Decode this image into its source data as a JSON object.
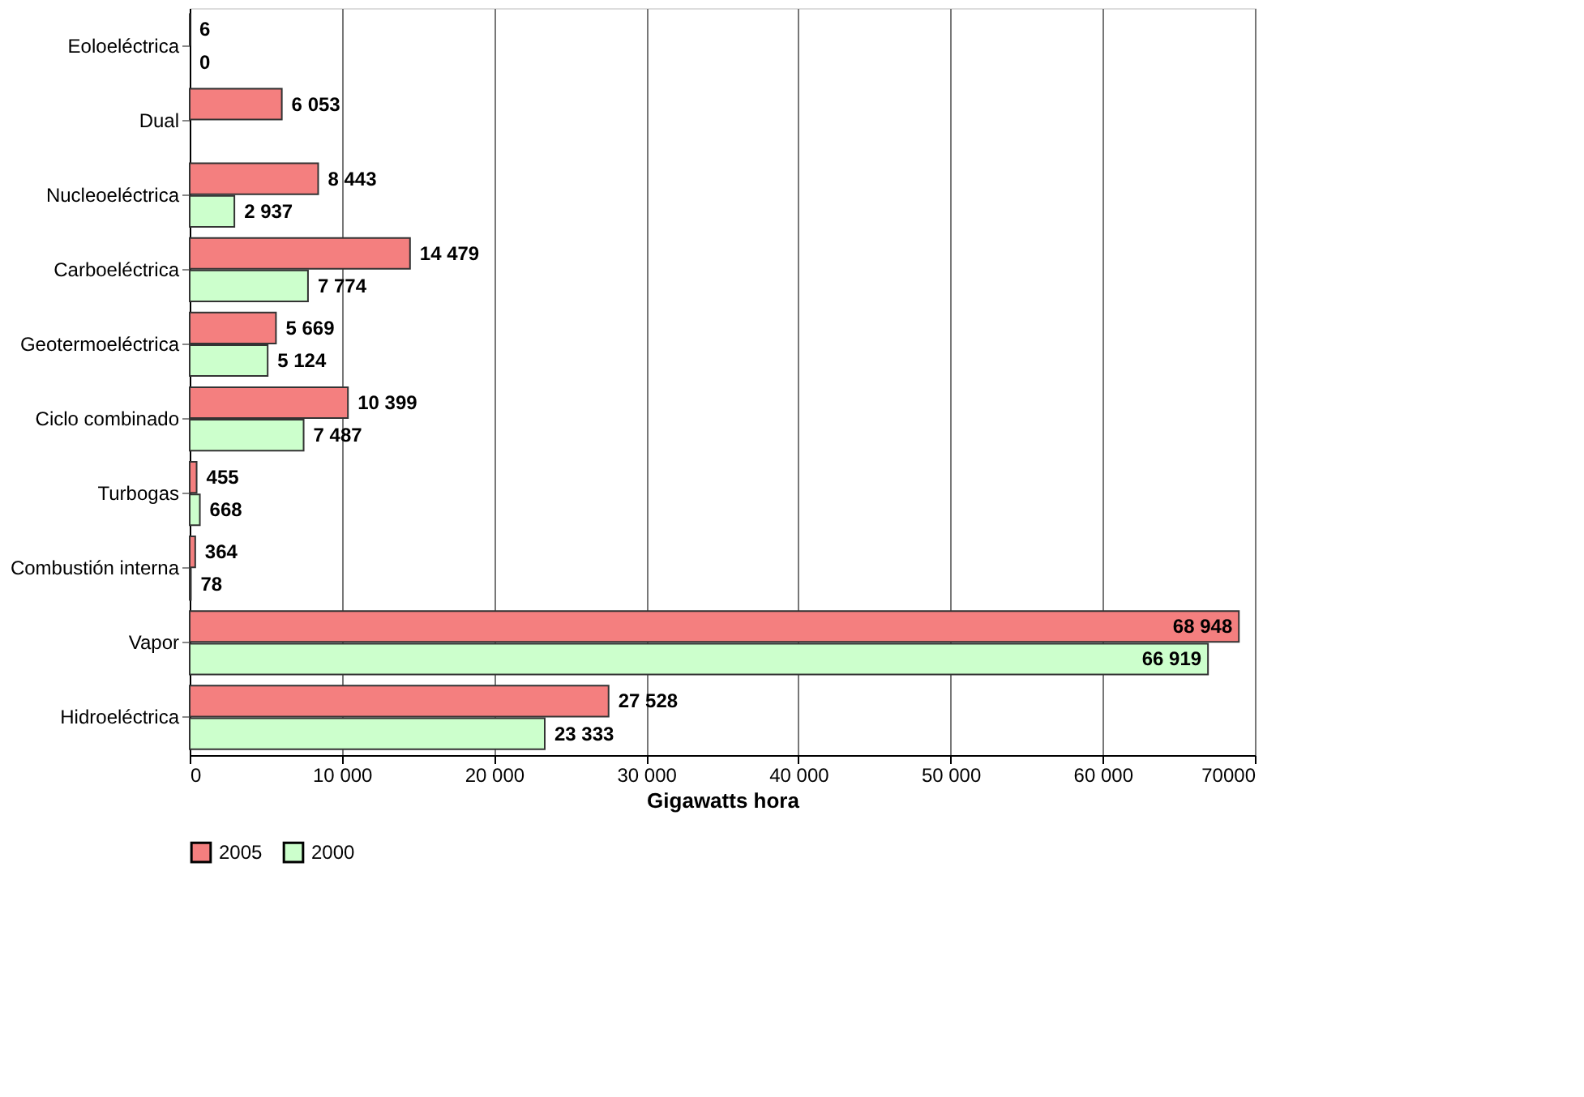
{
  "chart_data": {
    "type": "bar",
    "orientation": "horizontal",
    "xlabel": "Gigawatts hora",
    "categories": [
      "Eoloeléctrica",
      "Dual",
      "Nucleoeléctrica",
      "Carboeléctrica",
      "Geotermoeléctrica",
      "Ciclo combinado",
      "Turbogas",
      "Combustión interna",
      "Vapor",
      "Hidroeléctrica"
    ],
    "series": [
      {
        "name": "2005",
        "color": "#f47f7f",
        "values": [
          6,
          6053,
          8443,
          14479,
          5669,
          10399,
          455,
          364,
          68948,
          27528
        ],
        "value_labels": [
          "6",
          "6 053",
          "8 443",
          "14 479",
          "5 669",
          "10 399",
          "455",
          "364",
          "68 948",
          "27 528"
        ]
      },
      {
        "name": "2000",
        "color": "#ccffcc",
        "values": [
          0,
          null,
          2937,
          7774,
          5124,
          7487,
          668,
          78,
          66919,
          23333
        ],
        "value_labels": [
          "0",
          null,
          "2 937",
          "7 774",
          "5 124",
          "7 487",
          "668",
          "78",
          "66 919",
          "23 333"
        ]
      }
    ],
    "xlim": [
      0,
      70000
    ],
    "xticks": [
      0,
      {
        "value": 10000,
        "label": "10 000"
      },
      {
        "value": 20000,
        "label": "20 000"
      },
      {
        "value": 30000,
        "label": "30 000"
      },
      {
        "value": 40000,
        "label": "40 000"
      },
      {
        "value": 50000,
        "label": "50 000"
      },
      {
        "value": 60000,
        "label": "60 000"
      },
      70000
    ],
    "grid": "x",
    "legend": "bottom left"
  }
}
